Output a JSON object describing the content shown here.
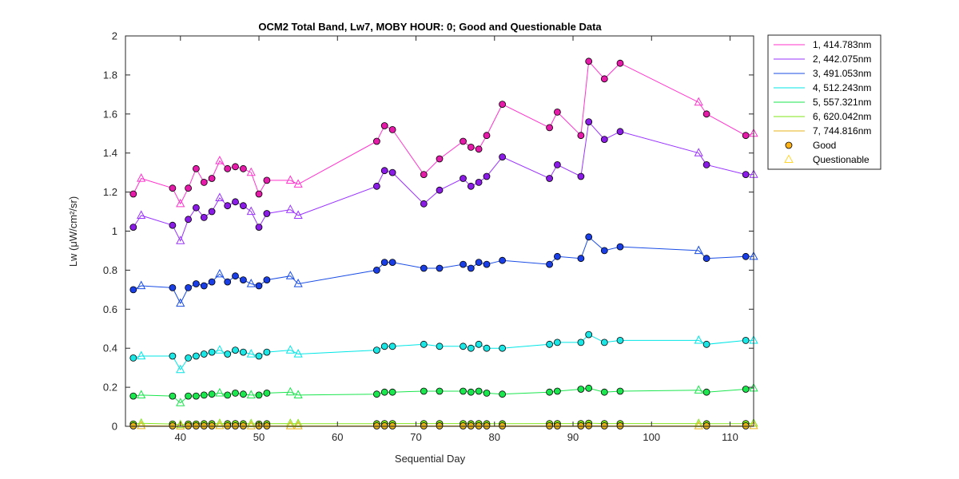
{
  "chart_data": {
    "type": "line",
    "title": "OCM2 Total Band,  Lw7, MOBY HOUR: 0;  Good and Questionable Data",
    "xlabel": "Sequential Day",
    "ylabel": "Lw (μW/cm²/sr)",
    "xlim": [
      33,
      113
    ],
    "ylim": [
      0,
      2
    ],
    "xticks": [
      40,
      50,
      60,
      70,
      80,
      90,
      100,
      110
    ],
    "yticks": [
      0,
      0.2,
      0.4,
      0.6,
      0.8,
      1,
      1.2,
      1.4,
      1.6,
      1.8,
      2
    ],
    "ytick_labels": [
      "0",
      "0.2",
      "0.4",
      "0.6",
      "0.8",
      "1",
      "1.2",
      "1.4",
      "1.6",
      "1.8",
      "2"
    ],
    "grid": false,
    "legend_position": "outside-top-right",
    "x": [
      34,
      35,
      39,
      40,
      41,
      42,
      43,
      44,
      45,
      46,
      47,
      48,
      49,
      50,
      51,
      54,
      55,
      65,
      66,
      67,
      71,
      73,
      76,
      77,
      78,
      79,
      81,
      87,
      88,
      91,
      92,
      94,
      96,
      106,
      107,
      112,
      113
    ],
    "quality": [
      "G",
      "Q",
      "G",
      "Q",
      "G",
      "G",
      "G",
      "G",
      "Q",
      "G",
      "G",
      "G",
      "Q",
      "G",
      "G",
      "Q",
      "Q",
      "G",
      "G",
      "G",
      "G",
      "G",
      "G",
      "G",
      "G",
      "G",
      "G",
      "G",
      "G",
      "G",
      "G",
      "G",
      "G",
      "Q",
      "G",
      "G",
      "Q"
    ],
    "series": [
      {
        "name": "1, 414.783nm",
        "color": "#ff33cc",
        "fill": "#e61aa8",
        "values": [
          1.19,
          1.27,
          1.22,
          1.14,
          1.22,
          1.32,
          1.25,
          1.27,
          1.36,
          1.32,
          1.33,
          1.32,
          1.3,
          1.19,
          1.26,
          1.26,
          1.24,
          1.46,
          1.54,
          1.52,
          1.29,
          1.37,
          1.46,
          1.43,
          1.42,
          1.49,
          1.65,
          1.53,
          1.61,
          1.49,
          1.87,
          1.78,
          1.86,
          1.66,
          1.6,
          1.49,
          1.5
        ]
      },
      {
        "name": "2, 442.075nm",
        "color": "#9933ff",
        "fill": "#8a1ae6",
        "values": [
          1.02,
          1.08,
          1.03,
          0.95,
          1.06,
          1.12,
          1.07,
          1.1,
          1.17,
          1.13,
          1.15,
          1.13,
          1.1,
          1.02,
          1.09,
          1.11,
          1.08,
          1.23,
          1.31,
          1.3,
          1.14,
          1.21,
          1.27,
          1.23,
          1.25,
          1.28,
          1.38,
          1.27,
          1.34,
          1.28,
          1.56,
          1.47,
          1.51,
          1.4,
          1.34,
          1.29,
          1.29
        ]
      },
      {
        "name": "3, 491.053nm",
        "color": "#1a4de6",
        "fill": "#1a3ee6",
        "values": [
          0.7,
          0.72,
          0.71,
          0.63,
          0.71,
          0.73,
          0.72,
          0.74,
          0.78,
          0.74,
          0.77,
          0.75,
          0.73,
          0.72,
          0.75,
          0.77,
          0.73,
          0.8,
          0.84,
          0.84,
          0.81,
          0.81,
          0.83,
          0.81,
          0.84,
          0.83,
          0.85,
          0.83,
          0.87,
          0.86,
          0.97,
          0.9,
          0.92,
          0.9,
          0.86,
          0.87,
          0.87
        ]
      },
      {
        "name": "4, 512.243nm",
        "color": "#00e6e6",
        "fill": "#1ae6e6",
        "values": [
          0.35,
          0.36,
          0.36,
          0.29,
          0.35,
          0.36,
          0.37,
          0.38,
          0.39,
          0.37,
          0.39,
          0.38,
          0.37,
          0.36,
          0.38,
          0.39,
          0.37,
          0.39,
          0.41,
          0.41,
          0.42,
          0.41,
          0.41,
          0.4,
          0.42,
          0.4,
          0.4,
          0.42,
          0.43,
          0.43,
          0.47,
          0.43,
          0.44,
          0.44,
          0.42,
          0.44,
          0.44
        ]
      },
      {
        "name": "5, 557.321nm",
        "color": "#1ae64d",
        "fill": "#1ae64d",
        "values": [
          0.155,
          0.16,
          0.155,
          0.12,
          0.155,
          0.155,
          0.16,
          0.165,
          0.17,
          0.16,
          0.17,
          0.165,
          0.16,
          0.16,
          0.17,
          0.175,
          0.16,
          0.165,
          0.175,
          0.175,
          0.18,
          0.18,
          0.18,
          0.175,
          0.18,
          0.17,
          0.165,
          0.175,
          0.18,
          0.19,
          0.195,
          0.175,
          0.18,
          0.185,
          0.175,
          0.19,
          0.195
        ]
      },
      {
        "name": "6, 620.042nm",
        "color": "#80e61a",
        "fill": "#80e61a",
        "values": [
          0.012,
          0.015,
          0.012,
          0.008,
          0.012,
          0.012,
          0.013,
          0.013,
          0.014,
          0.013,
          0.014,
          0.013,
          0.013,
          0.012,
          0.013,
          0.014,
          0.013,
          0.013,
          0.014,
          0.014,
          0.014,
          0.014,
          0.014,
          0.013,
          0.014,
          0.013,
          0.013,
          0.014,
          0.014,
          0.014,
          0.016,
          0.014,
          0.014,
          0.014,
          0.013,
          0.014,
          0.015
        ]
      },
      {
        "name": "7, 744.816nm",
        "color": "#e6b31a",
        "fill": "#e6b31a",
        "values": [
          0.002,
          0.003,
          0.002,
          0.001,
          0.002,
          0.002,
          0.002,
          0.002,
          0.003,
          0.002,
          0.002,
          0.002,
          0.002,
          0.002,
          0.002,
          0.002,
          0.002,
          0.002,
          0.002,
          0.002,
          0.002,
          0.002,
          0.002,
          0.002,
          0.002,
          0.002,
          0.002,
          0.002,
          0.002,
          0.002,
          0.003,
          0.002,
          0.002,
          0.002,
          0.002,
          0.002,
          0.003
        ]
      }
    ],
    "marker_legend": [
      {
        "name": "Good",
        "marker": "circle",
        "fill": "#ffb31a",
        "stroke": "#000000"
      },
      {
        "name": "Questionable",
        "marker": "triangle",
        "fill": "none",
        "stroke": "#ffd633"
      }
    ]
  }
}
